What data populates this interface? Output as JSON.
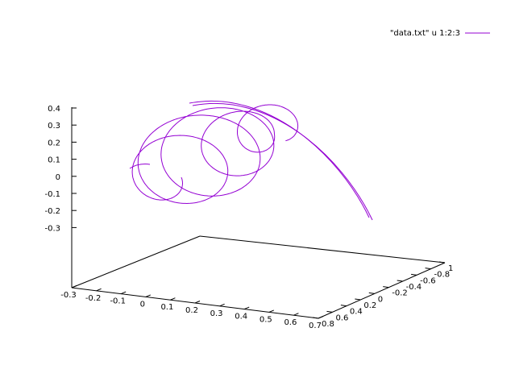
{
  "chart_data": {
    "type": "line",
    "legend": {
      "label": "\"data.txt\" u 1:2:3",
      "placement": "top-right",
      "color": "#9400d3"
    },
    "axes": {
      "x": {
        "ticks": [
          "-0.3",
          "-0.2",
          "-0.1",
          "0",
          "0.1",
          "0.2",
          "0.3",
          "0.4",
          "0.5",
          "0.6",
          "0.7"
        ],
        "range": [
          -0.3,
          0.7
        ]
      },
      "y": {
        "ticks": [
          "0.8",
          "0.6",
          "0.4",
          "0.2",
          "0",
          "-0.2",
          "-0.4",
          "-0.6",
          "-0.8",
          "1"
        ]
      },
      "z": {
        "ticks": [
          "0.4",
          "0.3",
          "0.2",
          "0.1",
          "0",
          "-0.1",
          "-0.2",
          "-0.3"
        ],
        "range": [
          -0.3,
          0.4
        ]
      }
    },
    "series": [
      {
        "name": "\"data.txt\" u 1:2:3",
        "color": "#9400d3",
        "description_points_xyz": [
          [
            0.0,
            0.8,
            0.05
          ],
          [
            0.1,
            0.6,
            0.12
          ],
          [
            0.2,
            0.4,
            0.2
          ],
          [
            0.3,
            0.2,
            0.25
          ],
          [
            0.35,
            0.0,
            0.3
          ],
          [
            0.4,
            -0.2,
            0.25
          ],
          [
            0.5,
            -0.4,
            0.15
          ],
          [
            0.6,
            -0.6,
            -0.05
          ],
          [
            0.65,
            -0.8,
            -0.25
          ]
        ]
      }
    ]
  }
}
